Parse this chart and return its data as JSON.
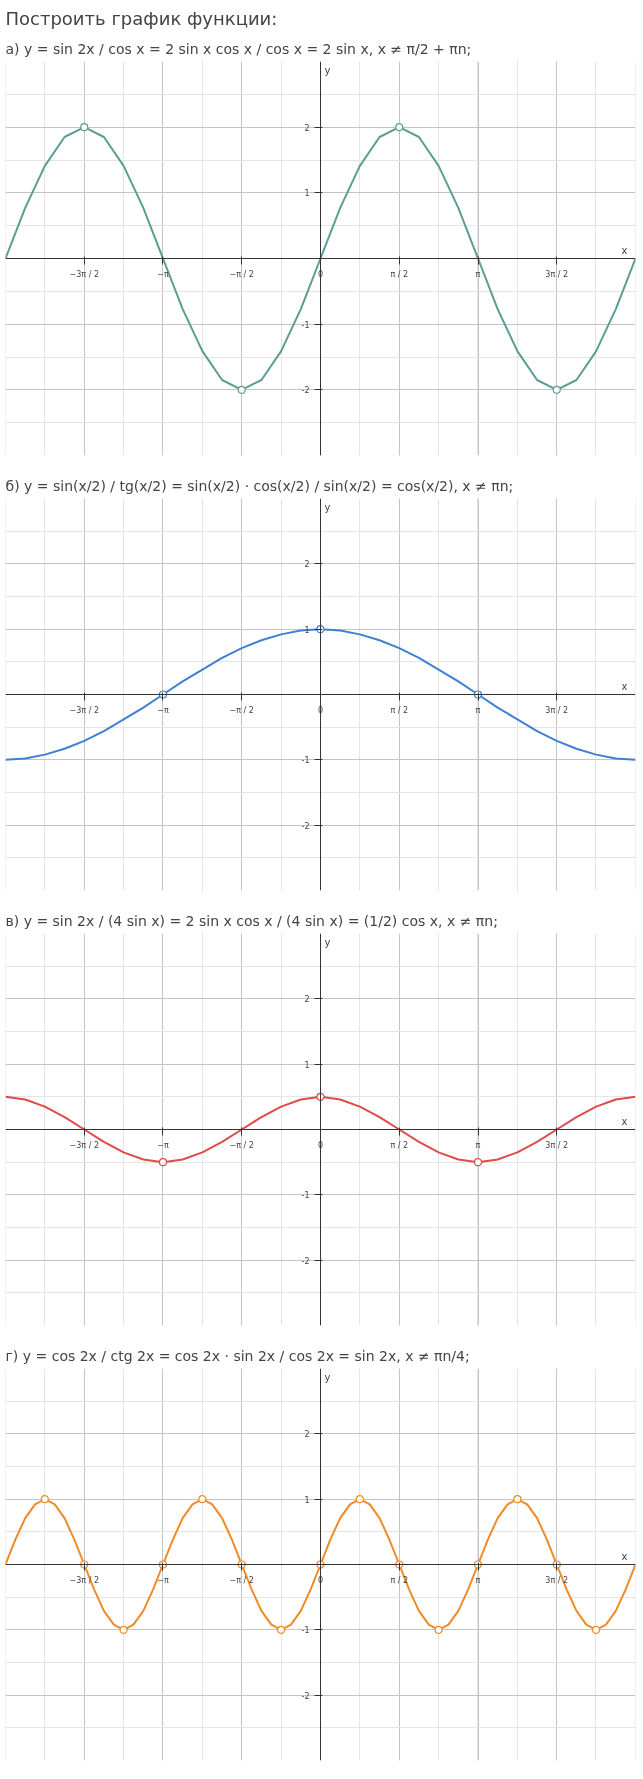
{
  "chart_data": [
    {
      "type": "line",
      "title": "а) y = sin 2x / cos x = 2 sin x cos x / cos x = 2 sin x,  x ≠ π/2 + πn;",
      "annotations": [
        "Построить график функции:"
      ],
      "xlabel": "x",
      "ylabel": "y",
      "xlim": [
        -6.283,
        6.283
      ],
      "ylim": [
        -3,
        3
      ],
      "xticks": [
        {
          "value": -4.712,
          "label": "−3π / 2"
        },
        {
          "value": -3.142,
          "label": "−π"
        },
        {
          "value": -1.571,
          "label": "−π / 2"
        },
        0,
        {
          "value": 1.571,
          "label": "π / 2"
        },
        {
          "value": 3.142,
          "label": "π"
        },
        {
          "value": 4.712,
          "label": "3π / 2"
        }
      ],
      "yticks": [
        -2,
        -1,
        1,
        2
      ],
      "grid": true,
      "series": [
        {
          "type": "line",
          "color": "#5a9e92",
          "x": [
            -6.283,
            -5.89,
            -5.498,
            -5.105,
            -4.712,
            -4.32,
            -3.927,
            -3.534,
            -3.142,
            -2.749,
            -2.356,
            -1.963,
            -1.571,
            -1.178,
            -0.785,
            -0.393,
            0,
            0.393,
            0.785,
            1.178,
            1.571,
            1.963,
            2.356,
            2.749,
            3.142,
            3.534,
            3.927,
            4.32,
            4.712,
            5.105,
            5.498,
            5.89,
            6.283
          ],
          "values": [
            0,
            0.77,
            1.41,
            1.85,
            2,
            1.85,
            1.41,
            0.77,
            0,
            -0.77,
            -1.41,
            -1.85,
            -2,
            -1.85,
            -1.41,
            -0.77,
            0,
            0.77,
            1.41,
            1.85,
            2,
            1.85,
            1.41,
            0.77,
            0,
            -0.77,
            -1.41,
            -1.85,
            -2,
            -1.85,
            -1.41,
            -0.77,
            0
          ]
        },
        {
          "type": "scatter",
          "marker": "circle",
          "color": "#5a9e92",
          "x": [
            -4.712,
            -1.571,
            1.571,
            4.712
          ],
          "values": [
            2,
            -2,
            2,
            -2
          ]
        }
      ]
    },
    {
      "type": "line",
      "title": "б) y = sin(x/2) / tg(x/2) = sin(x/2) · cos(x/2) / sin(x/2) = cos(x/2),  x ≠ πn;",
      "xlabel": "x",
      "ylabel": "y",
      "xlim": [
        -6.283,
        6.283
      ],
      "ylim": [
        -3,
        3
      ],
      "xticks": [
        {
          "value": -4.712,
          "label": "−3π / 2"
        },
        {
          "value": -3.142,
          "label": "−π"
        },
        {
          "value": -1.571,
          "label": "−π / 2"
        },
        0,
        {
          "value": 1.571,
          "label": "π / 2"
        },
        {
          "value": 3.142,
          "label": "π"
        },
        {
          "value": 4.712,
          "label": "3π / 2"
        }
      ],
      "yticks": [
        -2,
        -1,
        1,
        2
      ],
      "grid": true,
      "series": [
        {
          "type": "line",
          "color": "#3d80d4",
          "x": [
            -6.283,
            -5.89,
            -5.498,
            -5.105,
            -4.712,
            -4.32,
            -3.927,
            -3.534,
            -3.142,
            -2.749,
            -2.356,
            -1.963,
            -1.571,
            -1.178,
            -0.785,
            -0.393,
            0,
            0.393,
            0.785,
            1.178,
            1.571,
            1.963,
            2.356,
            2.749,
            3.142,
            3.534,
            3.927,
            4.32,
            4.712,
            5.105,
            5.498,
            5.89,
            6.283
          ],
          "values": [
            -1,
            -0.98,
            -0.92,
            -0.83,
            -0.71,
            -0.56,
            -0.38,
            -0.2,
            0,
            0.2,
            0.38,
            0.56,
            0.71,
            0.83,
            0.92,
            0.98,
            1,
            0.98,
            0.92,
            0.83,
            0.71,
            0.56,
            0.38,
            0.2,
            0,
            -0.2,
            -0.38,
            -0.56,
            -0.71,
            -0.83,
            -0.92,
            -0.98,
            -1
          ]
        },
        {
          "type": "scatter",
          "marker": "circle",
          "color": "#3d80d4",
          "x": [
            -3.142,
            0,
            3.142
          ],
          "values": [
            0,
            1,
            0
          ]
        }
      ]
    },
    {
      "type": "line",
      "title": "в) y = sin 2x / (4 sin x) = 2 sin x cos x / (4 sin x) = (1/2) cos x,  x ≠ πn;",
      "xlabel": "x",
      "ylabel": "y",
      "xlim": [
        -6.283,
        6.283
      ],
      "ylim": [
        -3,
        3
      ],
      "xticks": [
        {
          "value": -4.712,
          "label": "−3π / 2"
        },
        {
          "value": -3.142,
          "label": "−π"
        },
        {
          "value": -1.571,
          "label": "−π / 2"
        },
        0,
        {
          "value": 1.571,
          "label": "π / 2"
        },
        {
          "value": 3.142,
          "label": "π"
        },
        {
          "value": 4.712,
          "label": "3π / 2"
        }
      ],
      "yticks": [
        -2,
        -1,
        1,
        2
      ],
      "grid": true,
      "series": [
        {
          "type": "line",
          "color": "#e04a4a",
          "x": [
            -6.283,
            -5.89,
            -5.498,
            -5.105,
            -4.712,
            -4.32,
            -3.927,
            -3.534,
            -3.142,
            -2.749,
            -2.356,
            -1.963,
            -1.571,
            -1.178,
            -0.785,
            -0.393,
            0,
            0.393,
            0.785,
            1.178,
            1.571,
            1.963,
            2.356,
            2.749,
            3.142,
            3.534,
            3.927,
            4.32,
            4.712,
            5.105,
            5.498,
            5.89,
            6.283
          ],
          "values": [
            0.5,
            0.46,
            0.35,
            0.19,
            0,
            -0.19,
            -0.35,
            -0.46,
            -0.5,
            -0.46,
            -0.35,
            -0.19,
            0,
            0.19,
            0.35,
            0.46,
            0.5,
            0.46,
            0.35,
            0.19,
            0,
            -0.19,
            -0.35,
            -0.46,
            -0.5,
            -0.46,
            -0.35,
            -0.19,
            0,
            0.19,
            0.35,
            0.46,
            0.5
          ]
        },
        {
          "type": "scatter",
          "marker": "circle",
          "color": "#e04a4a",
          "x": [
            -3.142,
            0,
            3.142
          ],
          "values": [
            -0.5,
            0.5,
            -0.5
          ]
        }
      ]
    },
    {
      "type": "line",
      "title": "г) y = cos 2x / ctg 2x = cos 2x · sin 2x / cos 2x = sin 2x,  x ≠ πn/4;",
      "xlabel": "x",
      "ylabel": "y",
      "xlim": [
        -6.283,
        6.283
      ],
      "ylim": [
        -3,
        3
      ],
      "xticks": [
        {
          "value": -4.712,
          "label": "−3π / 2"
        },
        {
          "value": -3.142,
          "label": "−π"
        },
        {
          "value": -1.571,
          "label": "−π / 2"
        },
        0,
        {
          "value": 1.571,
          "label": "π / 2"
        },
        {
          "value": 3.142,
          "label": "π"
        },
        {
          "value": 4.712,
          "label": "3π / 2"
        }
      ],
      "yticks": [
        -2,
        -1,
        1,
        2
      ],
      "grid": true,
      "series": [
        {
          "type": "line",
          "color": "#f08a24",
          "x": [
            -6.283,
            -6.087,
            -5.89,
            -5.694,
            -5.498,
            -5.301,
            -5.105,
            -4.909,
            -4.712,
            -4.516,
            -4.32,
            -4.123,
            -3.927,
            -3.731,
            -3.534,
            -3.338,
            -3.142,
            -2.945,
            -2.749,
            -2.553,
            -2.356,
            -2.16,
            -1.963,
            -1.767,
            -1.571,
            -1.374,
            -1.178,
            -0.982,
            -0.785,
            -0.589,
            -0.393,
            -0.196,
            0,
            0.196,
            0.393,
            0.589,
            0.785,
            0.982,
            1.178,
            1.374,
            1.571,
            1.767,
            1.963,
            2.16,
            2.356,
            2.553,
            2.749,
            2.945,
            3.142,
            3.338,
            3.534,
            3.731,
            3.927,
            4.123,
            4.32,
            4.516,
            4.712,
            4.909,
            5.105,
            5.301,
            5.498,
            5.694,
            5.89,
            6.087,
            6.283
          ],
          "values": [
            0,
            0.38,
            0.71,
            0.92,
            1,
            0.92,
            0.71,
            0.38,
            0,
            -0.38,
            -0.71,
            -0.92,
            -1,
            -0.92,
            -0.71,
            -0.38,
            0,
            0.38,
            0.71,
            0.92,
            1,
            0.92,
            0.71,
            0.38,
            0,
            -0.38,
            -0.71,
            -0.92,
            -1,
            -0.92,
            -0.71,
            -0.38,
            0,
            0.38,
            0.71,
            0.92,
            1,
            0.92,
            0.71,
            0.38,
            0,
            -0.38,
            -0.71,
            -0.92,
            -1,
            -0.92,
            -0.71,
            -0.38,
            0,
            0.38,
            0.71,
            0.92,
            1,
            0.92,
            0.71,
            0.38,
            0,
            -0.38,
            -0.71,
            -0.92,
            -1,
            -0.92,
            -0.71,
            -0.38,
            0
          ]
        },
        {
          "type": "scatter",
          "marker": "circle",
          "color": "#f08a24",
          "x": [
            -5.498,
            -4.712,
            -3.927,
            -3.142,
            -2.356,
            -1.571,
            -0.785,
            0,
            0.785,
            1.571,
            2.356,
            3.142,
            3.927,
            4.712,
            5.498
          ],
          "values": [
            1,
            0,
            -1,
            0,
            1,
            0,
            -1,
            0,
            1,
            0,
            -1,
            0,
            1,
            0,
            -1
          ]
        }
      ]
    }
  ]
}
